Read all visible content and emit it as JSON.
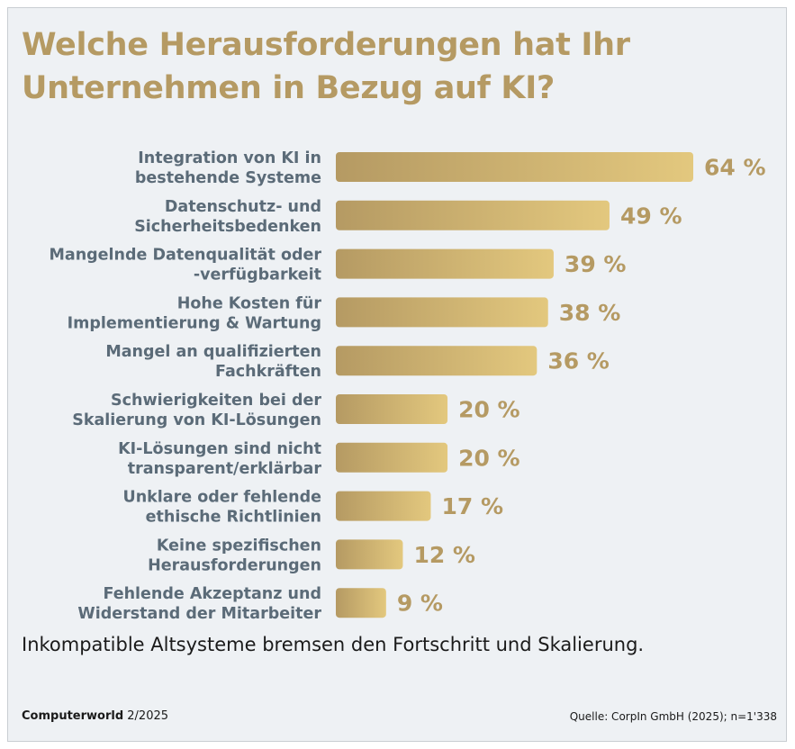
{
  "title_lines": [
    "Welche Herausforderungen hat Ihr",
    "Unternehmen in Bezug auf KI?"
  ],
  "subtitle": "Inkompatible Altsysteme bremsen den Fortschritt und Skalierung.",
  "footer": {
    "publication": "Computerworld",
    "issue": "2/2025",
    "source": "Quelle: CorpIn GmbH (2025); n=1'338"
  },
  "colors": {
    "bar_start": "#b59a63",
    "bar_end": "#e3c87e",
    "value_text": "#b59a63",
    "label_text": "#5b6b78"
  },
  "chart_data": {
    "type": "bar",
    "orientation": "horizontal",
    "unit": "%",
    "categories": [
      [
        "Integration von KI in",
        "bestehende Systeme"
      ],
      [
        "Datenschutz- und",
        "Sicherheitsbedenken"
      ],
      [
        "Mangelnde Datenqualität oder",
        "-verfügbarkeit"
      ],
      [
        "Hohe Kosten für",
        "Implementierung & Wartung"
      ],
      [
        "Mangel an qualifizierten",
        "Fachkräften"
      ],
      [
        "Schwierigkeiten bei der",
        "Skalierung von KI-Lösungen"
      ],
      [
        "KI-Lösungen sind nicht",
        "transparent/erklärbar"
      ],
      [
        "Unklare oder fehlende",
        "ethische Richtlinien"
      ],
      [
        "Keine spezifischen",
        "Herausforderungen"
      ],
      [
        "Fehlende Akzeptanz und",
        "Widerstand der Mitarbeiter"
      ]
    ],
    "values": [
      64,
      49,
      39,
      38,
      36,
      20,
      20,
      17,
      12,
      9
    ],
    "value_labels": [
      "64 %",
      "49 %",
      "39 %",
      "38 %",
      "36 %",
      "20 %",
      "20 %",
      "17 %",
      "12 %",
      "9 %"
    ],
    "xlim": [
      0,
      64
    ],
    "grid": false,
    "legend": "none"
  }
}
